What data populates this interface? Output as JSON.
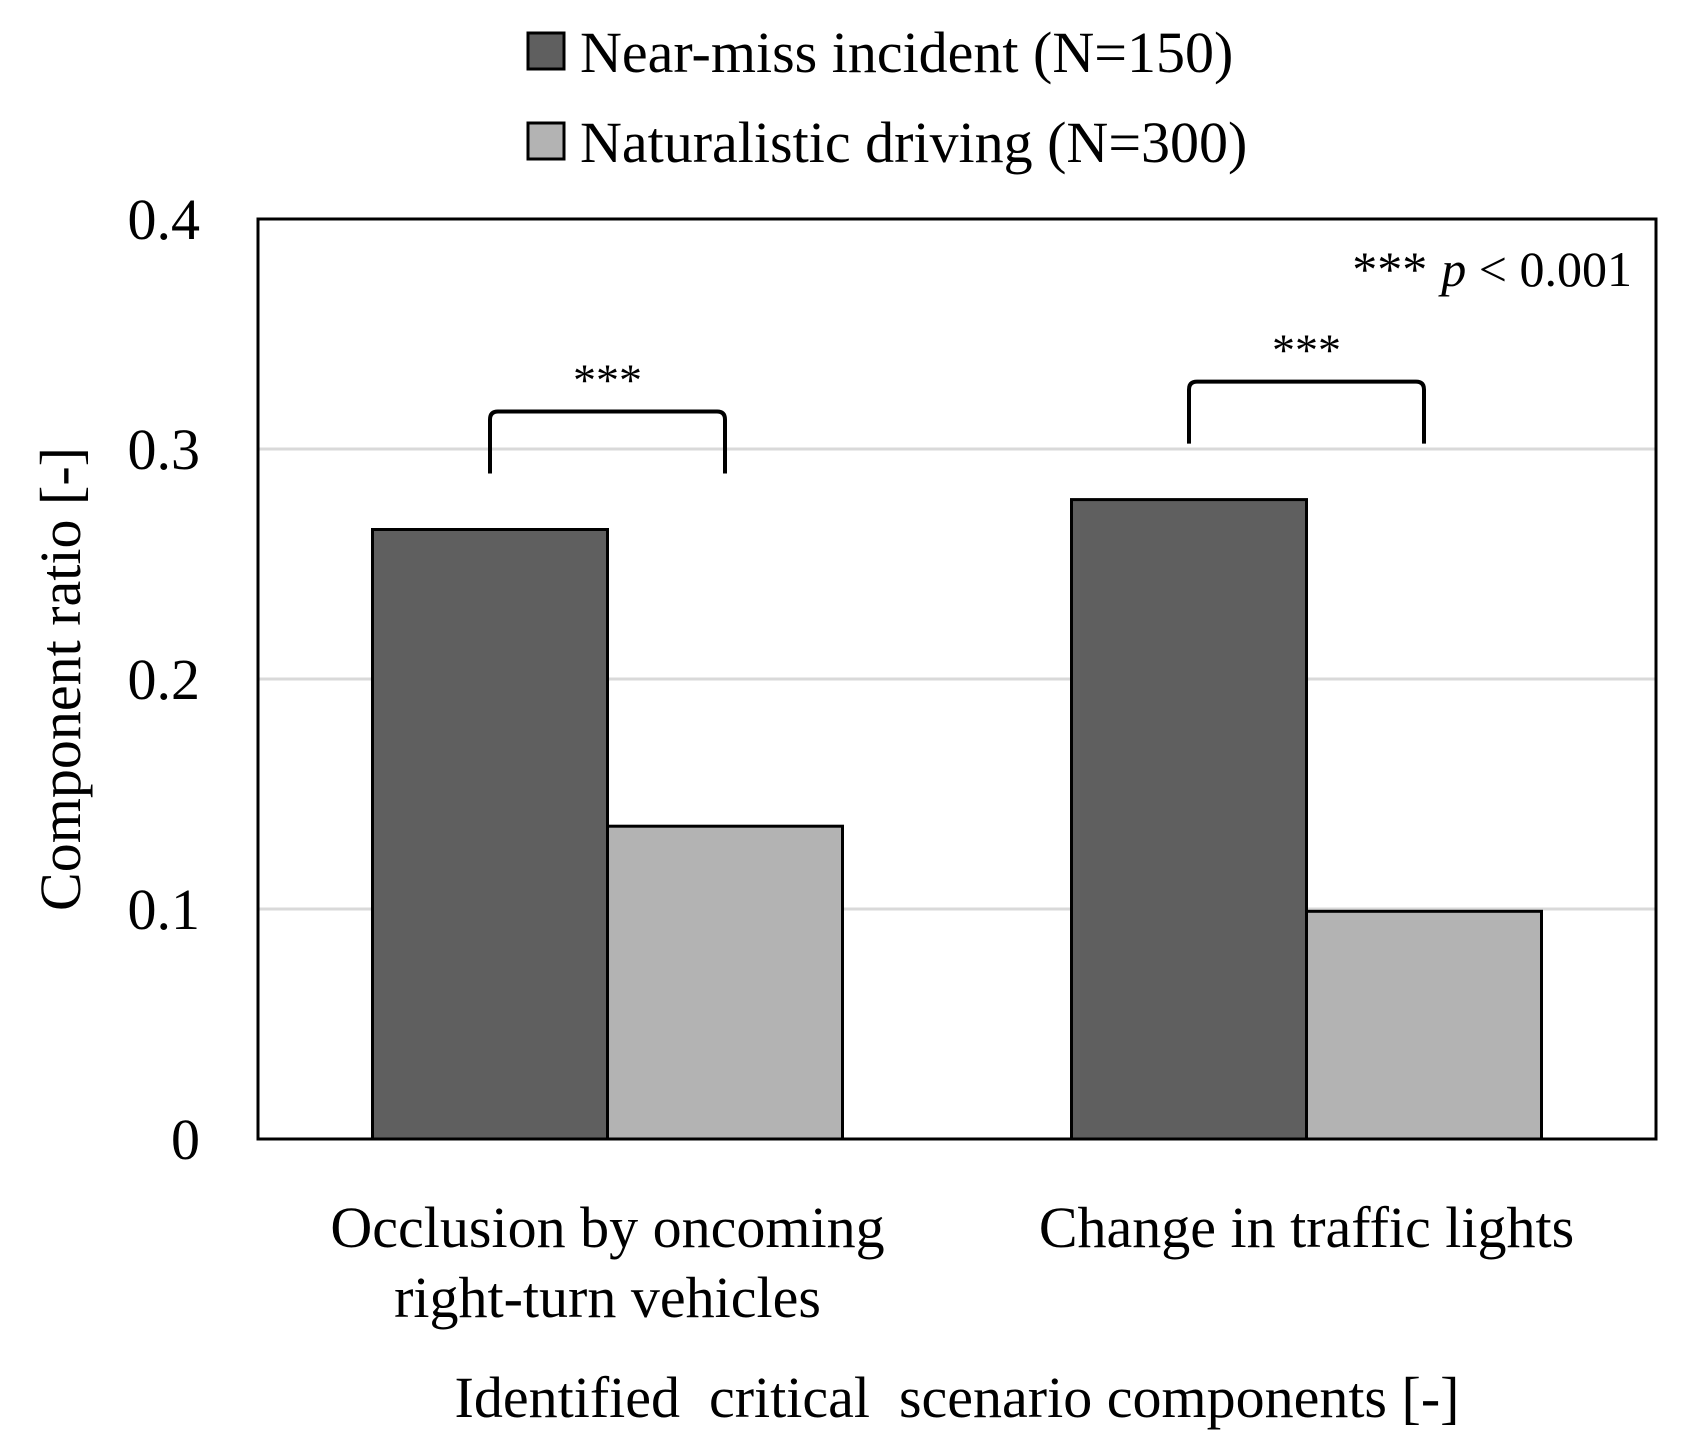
{
  "chart_data": {
    "type": "bar",
    "categories": [
      [
        "Occlusion by oncoming",
        "right-turn vehicles"
      ],
      [
        "Change in traffic lights"
      ]
    ],
    "series": [
      {
        "name": "Near-miss incident (N=150)",
        "values": [
          0.265,
          0.278
        ],
        "color": "#5f5f5f"
      },
      {
        "name": "Naturalistic driving (N=300)",
        "values": [
          0.136,
          0.099
        ],
        "color": "#b3b3b3"
      }
    ],
    "xlabel": "Identified  critical  scenario components [-]",
    "ylabel": "Component ratio [-]",
    "ylim": [
      0,
      0.4
    ],
    "yticks": [
      "0",
      "0.1",
      "0.2",
      "0.3",
      "0.4"
    ],
    "grid": true,
    "legend_position": "top-center",
    "significance": [
      {
        "category_index": 0,
        "label": "***"
      },
      {
        "category_index": 1,
        "label": "***"
      }
    ],
    "annotation": {
      "stars": "***",
      "p": "p",
      "rest": " < 0.001"
    }
  }
}
